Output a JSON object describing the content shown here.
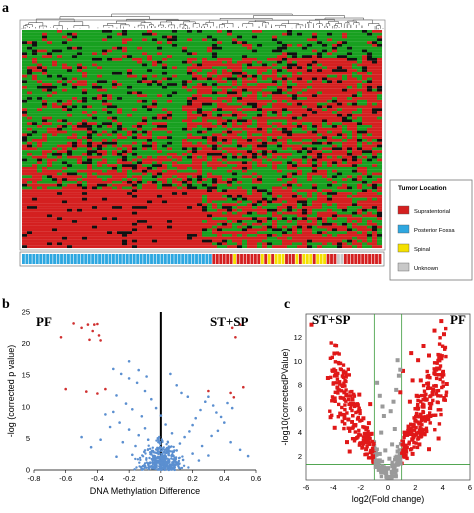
{
  "panels": {
    "a": {
      "letter": "a",
      "legend_title": "Tumor Location",
      "legend_items": [
        {
          "label": "Supratentorial",
          "color": "#d42020"
        },
        {
          "label": "Posterior Fossa",
          "color": "#2ea7e0"
        },
        {
          "label": "Spinal",
          "color": "#f4e000"
        },
        {
          "label": "Unknown",
          "color": "#c8c8c8"
        }
      ],
      "tumor_location_track": "BBBBBBBBBBBBBBBBBBBBBBBBBBBBBBBBBBBBBBBBBBBBBBBBBBBBBBBRRRRRRYRRRRRRRYRYRYYYRRRYRYYYRYYYRRRGGRRRRRRRRRRR"
    },
    "b": {
      "letter": "b",
      "label_left": "PF",
      "label_right": "ST+SP"
    },
    "c": {
      "letter": "c",
      "label_left": "ST+SP",
      "label_right": "PF"
    }
  },
  "chart_data": [
    {
      "type": "heatmap",
      "colors": {
        "high": "#d42020",
        "low": "#18a020",
        "mid": "#101010"
      }
    },
    {
      "type": "scatter",
      "xlabel": "DNA Methylation Difference",
      "ylabel": "-log (corrected p value)",
      "xlim": [
        -0.8,
        0.6
      ],
      "ylim": [
        0,
        25
      ],
      "xticks": [
        "-0.8",
        "-0.6",
        "-0.4",
        "-0.2",
        "0",
        "0.2",
        "0.4",
        "0.6"
      ],
      "yticks": [
        "0",
        "5",
        "10",
        "15",
        "20",
        "25"
      ],
      "series": [
        {
          "color": "#d03030",
          "points": [
            [
              -0.63,
              21
            ],
            [
              -0.55,
              23.2
            ],
            [
              -0.5,
              22.5
            ],
            [
              -0.46,
              23
            ],
            [
              -0.43,
              22
            ],
            [
              -0.42,
              23
            ],
            [
              -0.4,
              23.1
            ],
            [
              -0.39,
              21.3
            ],
            [
              -0.45,
              20.6
            ],
            [
              -0.38,
              20.5
            ],
            [
              -0.6,
              12.8
            ],
            [
              -0.47,
              12.4
            ],
            [
              -0.35,
              12.8
            ],
            [
              -0.4,
              12.1
            ],
            [
              0.45,
              22.5
            ],
            [
              0.5,
              23
            ],
            [
              0.47,
              21
            ],
            [
              0.52,
              13.1
            ],
            [
              0.44,
              12.2
            ],
            [
              0.46,
              11.5
            ],
            [
              0.3,
              12.5
            ]
          ]
        },
        {
          "color": "#5b8fd0",
          "points": [
            [
              -0.3,
              16
            ],
            [
              -0.25,
              15.2
            ],
            [
              -0.2,
              14.5
            ],
            [
              -0.15,
              13.8
            ],
            [
              -0.1,
              12.5
            ],
            [
              -0.28,
              11.8
            ],
            [
              -0.22,
              10.5
            ],
            [
              -0.18,
              9.6
            ],
            [
              -0.12,
              8.5
            ],
            [
              -0.3,
              9.2
            ],
            [
              -0.35,
              8.8
            ],
            [
              -0.26,
              7.5
            ],
            [
              -0.32,
              6.8
            ],
            [
              -0.2,
              6.4
            ],
            [
              -0.14,
              5.5
            ],
            [
              -0.08,
              4.8
            ],
            [
              -0.24,
              4.4
            ],
            [
              -0.16,
              3.8
            ],
            [
              -0.1,
              3.1
            ],
            [
              -0.06,
              2.5
            ],
            [
              -0.04,
              1.8
            ],
            [
              -0.02,
              1.2
            ],
            [
              0.02,
              1
            ],
            [
              0.05,
              1.6
            ],
            [
              0.08,
              2.2
            ],
            [
              0.1,
              3.1
            ],
            [
              0.12,
              4.2
            ],
            [
              0.15,
              5.2
            ],
            [
              0.18,
              6.1
            ],
            [
              0.2,
              7.1
            ],
            [
              0.22,
              8.2
            ],
            [
              0.25,
              9.5
            ],
            [
              0.28,
              10.8
            ],
            [
              0.3,
              11.6
            ],
            [
              0.33,
              10.2
            ],
            [
              0.35,
              9.1
            ],
            [
              0.38,
              8.4
            ],
            [
              0.4,
              7.5
            ],
            [
              0.36,
              6.2
            ],
            [
              0.32,
              5.4
            ],
            [
              0.42,
              10.6
            ],
            [
              0.45,
              9.8
            ],
            [
              0.26,
              3.8
            ],
            [
              0.2,
              2.6
            ],
            [
              0.14,
              1.6
            ],
            [
              -0.44,
              3.6
            ],
            [
              -0.5,
              5.2
            ],
            [
              -0.38,
              4.8
            ],
            [
              0.5,
              3.2
            ],
            [
              0.44,
              4.4
            ],
            [
              0.55,
              2.2
            ],
            [
              -0.2,
              17.2
            ],
            [
              -0.14,
              15.8
            ],
            [
              -0.09,
              14.8
            ],
            [
              0.06,
              15.2
            ],
            [
              0.1,
              13.4
            ],
            [
              0.13,
              12.2
            ],
            [
              0.17,
              11.6
            ],
            [
              -0.06,
              11.2
            ],
            [
              -0.03,
              9.8
            ],
            [
              0.0,
              8.6
            ],
            [
              0.03,
              7.2
            ],
            [
              -0.1,
              6.6
            ],
            [
              0.07,
              5.8
            ],
            [
              -0.18,
              2.4
            ],
            [
              -0.28,
              2.1
            ],
            [
              0.24,
              1.5
            ],
            [
              0.3,
              2.3
            ]
          ]
        }
      ]
    },
    {
      "type": "scatter",
      "xlabel": "log2(Fold change)",
      "ylabel": "-log10(correctedPValue)",
      "xlim": [
        -6,
        6
      ],
      "ylim": [
        0,
        14
      ],
      "xticks": [
        "-6",
        "-4",
        "-2",
        "0",
        "2",
        "4",
        "6"
      ],
      "yticks": [
        "2",
        "4",
        "6",
        "8",
        "10",
        "12"
      ],
      "series": [
        {
          "color": "#e01818",
          "points": [
            [
              -5.6,
              13.1
            ],
            [
              -4.4,
              8.6
            ],
            [
              -3.7,
              7.8
            ],
            [
              -3.2,
              7.4
            ],
            [
              -2.6,
              6.8
            ],
            [
              -2.2,
              6.3
            ],
            [
              -1.8,
              5.2
            ],
            [
              -3.5,
              5.6
            ],
            [
              -2.9,
              5.1
            ],
            [
              -2.4,
              4.6
            ],
            [
              -4.2,
              5.3
            ],
            [
              -3.9,
              4.4
            ],
            [
              3.9,
              13.4
            ],
            [
              4.1,
              12.3
            ],
            [
              3.4,
              12.6
            ],
            [
              3.0,
              10.5
            ],
            [
              3.6,
              9.4
            ],
            [
              2.6,
              11.3
            ],
            [
              2.2,
              10.1
            ],
            [
              1.8,
              8.4
            ],
            [
              2.9,
              8.7
            ],
            [
              3.3,
              7.6
            ],
            [
              4.3,
              8.1
            ],
            [
              2.1,
              7.1
            ],
            [
              1.6,
              6.6
            ],
            [
              2.6,
              6.3
            ],
            [
              3.1,
              5.4
            ],
            [
              2.0,
              5.0
            ],
            [
              1.5,
              4.5
            ],
            [
              -1.4,
              4.8
            ],
            [
              -1.2,
              3.9
            ],
            [
              1.4,
              3.8
            ],
            [
              2.3,
              3.0
            ],
            [
              -2.0,
              3.1
            ],
            [
              -1.6,
              2.6
            ],
            [
              1.8,
              2.2
            ],
            [
              -2.8,
              2.4
            ],
            [
              3.0,
              2.6
            ],
            [
              -1.1,
              2.0
            ],
            [
              1.2,
              2.8
            ],
            [
              0.9,
              7.4
            ],
            [
              1.1,
              9.2
            ],
            [
              2.4,
              8.4
            ],
            [
              -2.1,
              7.2
            ],
            [
              -1.3,
              6.4
            ],
            [
              1.7,
              10.7
            ],
            [
              -3.0,
              3.2
            ],
            [
              3.7,
              3.5
            ]
          ]
        },
        {
          "color": "#9a9a9a",
          "points": [
            [
              -0.8,
              8.2
            ],
            [
              -0.6,
              7.1
            ],
            [
              -0.4,
              6.2
            ],
            [
              -0.3,
              5.4
            ],
            [
              0.2,
              5.8
            ],
            [
              0.4,
              6.6
            ],
            [
              0.6,
              7.6
            ],
            [
              0.8,
              8.8
            ],
            [
              0.5,
              4.3
            ],
            [
              -0.5,
              4.0
            ],
            [
              0.3,
              3.0
            ],
            [
              -0.2,
              2.5
            ],
            [
              0.1,
              1.8
            ],
            [
              -0.6,
              2.2
            ],
            [
              0.7,
              2.4
            ],
            [
              0.0,
              1.0
            ],
            [
              -0.9,
              1.4
            ],
            [
              0.9,
              1.6
            ],
            [
              -0.3,
              0.9
            ],
            [
              0.4,
              0.8
            ],
            [
              0.9,
              9.3
            ],
            [
              0.7,
              10.1
            ]
          ]
        }
      ],
      "threshold_lines": {
        "x": [
          -1,
          1
        ],
        "y": [
          1.3
        ]
      }
    }
  ]
}
